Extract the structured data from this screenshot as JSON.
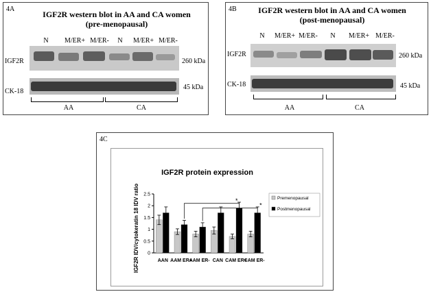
{
  "panel_4a": {
    "label": "4A",
    "title_line1": "IGF2R western blot in AA and CA women",
    "title_line2": "(pre-menopausal)",
    "lanes": [
      "N",
      "M/ER+",
      "M/ER-",
      "N",
      "M/ER+",
      "M/ER-"
    ],
    "row1_label": "IGF2R",
    "row1_size": "260 kDa",
    "row2_label": "CK-18",
    "row2_size": "45 kDa",
    "group1": "AA",
    "group2": "CA"
  },
  "panel_4b": {
    "label": "4B",
    "title_line1": "IGF2R western blot in AA and CA women",
    "title_line2": "(post-menopausal)",
    "lanes": [
      "N",
      "M/ER+",
      "M/ER-",
      "N",
      "M/ER+",
      "M/ER-"
    ],
    "row1_label": "IGF2R",
    "row1_size": "260 kDa",
    "row2_label": "CK-18",
    "row2_size": "45 kDa",
    "group1": "AA",
    "group2": "CA"
  },
  "panel_4c": {
    "label": "4C"
  },
  "chart_data": {
    "type": "bar",
    "title": "IGF2R protein expression",
    "ylabel": "IGF2R IDV/cytokeratin 18 IDV ratio",
    "xlabel": "",
    "ylim": [
      0,
      2.5
    ],
    "yticks": [
      "0",
      "0.5",
      "1",
      "1.5",
      "2",
      "2.5"
    ],
    "categories": [
      "AAN",
      "AAM ER+",
      "AAM ER-",
      "CAN",
      "CAM ER+",
      "CAM ER-"
    ],
    "series": [
      {
        "name": "Premenopausal",
        "color": "#c8c8c8",
        "values": [
          1.4,
          0.9,
          0.8,
          0.95,
          0.7,
          0.8
        ],
        "errors": [
          0.2,
          0.12,
          0.12,
          0.15,
          0.1,
          0.12
        ]
      },
      {
        "name": "Postmenopausal",
        "color": "#000000",
        "values": [
          1.7,
          1.2,
          1.1,
          1.7,
          1.9,
          1.7
        ],
        "errors": [
          0.25,
          0.18,
          0.18,
          0.25,
          0.25,
          0.25
        ]
      }
    ],
    "annotations": [
      "*",
      "*"
    ],
    "legend_position": "right",
    "grid": false
  }
}
